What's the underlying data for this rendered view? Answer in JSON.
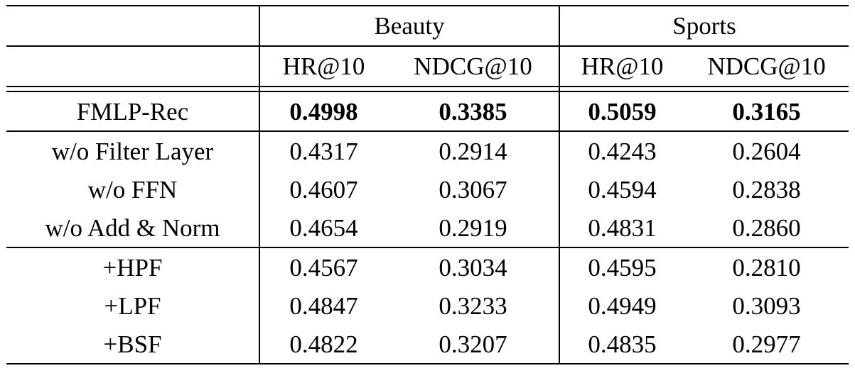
{
  "table": {
    "groups": [
      {
        "label": "Beauty"
      },
      {
        "label": "Sports"
      }
    ],
    "metric_headers": [
      "HR@10",
      "NDCG@10",
      "HR@10",
      "NDCG@10"
    ],
    "rows": [
      {
        "label": "FMLP-Rec",
        "bold": true,
        "values": [
          "0.4998",
          "0.3385",
          "0.5059",
          "0.3165"
        ]
      },
      {
        "label": "w/o Filter Layer",
        "bold": false,
        "values": [
          "0.4317",
          "0.2914",
          "0.4243",
          "0.2604"
        ]
      },
      {
        "label": "w/o FFN",
        "bold": false,
        "values": [
          "0.4607",
          "0.3067",
          "0.4594",
          "0.2838"
        ]
      },
      {
        "label": "w/o Add & Norm",
        "bold": false,
        "values": [
          "0.4654",
          "0.2919",
          "0.4831",
          "0.2860"
        ]
      },
      {
        "label": "+HPF",
        "bold": false,
        "values": [
          "0.4567",
          "0.3034",
          "0.4595",
          "0.2810"
        ]
      },
      {
        "label": "+LPF",
        "bold": false,
        "values": [
          "0.4847",
          "0.3233",
          "0.4949",
          "0.3093"
        ]
      },
      {
        "label": "+BSF",
        "bold": false,
        "values": [
          "0.4822",
          "0.3207",
          "0.4835",
          "0.2977"
        ]
      }
    ]
  },
  "chart_data": {
    "type": "table",
    "column_groups": [
      "Beauty",
      "Sports"
    ],
    "columns": [
      "Beauty HR@10",
      "Beauty NDCG@10",
      "Sports HR@10",
      "Sports NDCG@10"
    ],
    "row_labels": [
      "FMLP-Rec",
      "w/o Filter Layer",
      "w/o FFN",
      "w/o Add & Norm",
      "+HPF",
      "+LPF",
      "+BSF"
    ],
    "values": [
      [
        0.4998,
        0.3385,
        0.5059,
        0.3165
      ],
      [
        0.4317,
        0.2914,
        0.4243,
        0.2604
      ],
      [
        0.4607,
        0.3067,
        0.4594,
        0.2838
      ],
      [
        0.4654,
        0.2919,
        0.4831,
        0.286
      ],
      [
        0.4567,
        0.3034,
        0.4595,
        0.281
      ],
      [
        0.4847,
        0.3233,
        0.4949,
        0.3093
      ],
      [
        0.4822,
        0.3207,
        0.4835,
        0.2977
      ]
    ],
    "bold_row": "FMLP-Rec"
  }
}
